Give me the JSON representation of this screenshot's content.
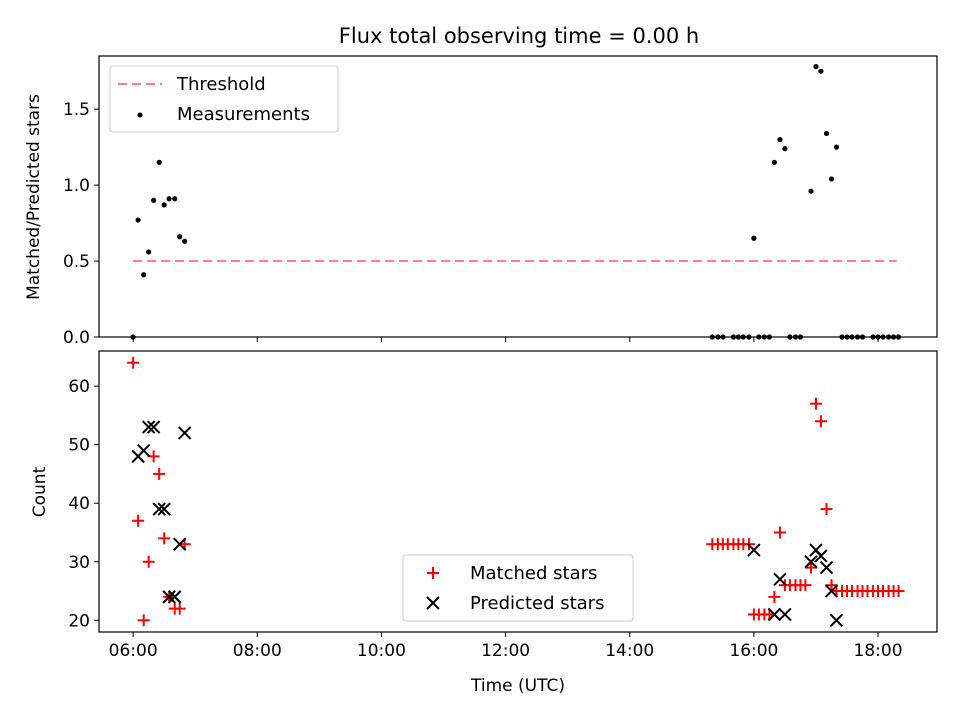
{
  "title": "Flux total observing time = 0.00 h",
  "colors": {
    "threshold": "#ff7f7f",
    "measurement": "#000000",
    "matched": "#ff0000",
    "predicted": "#000000"
  },
  "chart_data": [
    {
      "type": "scatter",
      "ylabel": "Matched/Predicted stars",
      "xlim": [
        5.45,
        18.95
      ],
      "ylim": [
        0,
        1.85
      ],
      "yticks": [
        0.0,
        0.5,
        1.0,
        1.5
      ],
      "ytick_labels": [
        "0.0",
        "0.5",
        "1.0",
        "1.5"
      ],
      "legend": {
        "placement": "upper-left",
        "entries": [
          "Threshold",
          "Measurements"
        ]
      },
      "threshold": {
        "name": "Threshold",
        "value": 0.5,
        "x": [
          6.0,
          18.3
        ]
      },
      "series": [
        {
          "name": "Measurements",
          "points": [
            [
              6.0,
              0.0
            ],
            [
              6.08,
              0.77
            ],
            [
              6.17,
              0.41
            ],
            [
              6.25,
              0.56
            ],
            [
              6.33,
              0.9
            ],
            [
              6.42,
              1.15
            ],
            [
              6.5,
              0.87
            ],
            [
              6.58,
              0.91
            ],
            [
              6.67,
              0.91
            ],
            [
              6.75,
              0.66
            ],
            [
              6.83,
              0.63
            ],
            [
              15.33,
              0.0
            ],
            [
              15.42,
              0.0
            ],
            [
              15.5,
              0.0
            ],
            [
              15.67,
              0.0
            ],
            [
              15.75,
              0.0
            ],
            [
              15.83,
              0.0
            ],
            [
              15.92,
              0.0
            ],
            [
              16.0,
              0.65
            ],
            [
              16.08,
              0.0
            ],
            [
              16.17,
              0.0
            ],
            [
              16.25,
              0.0
            ],
            [
              16.33,
              1.15
            ],
            [
              16.42,
              1.3
            ],
            [
              16.5,
              1.24
            ],
            [
              16.58,
              0.0
            ],
            [
              16.67,
              0.0
            ],
            [
              16.75,
              0.0
            ],
            [
              16.92,
              0.96
            ],
            [
              17.0,
              1.78
            ],
            [
              17.08,
              1.75
            ],
            [
              17.17,
              1.34
            ],
            [
              17.25,
              1.04
            ],
            [
              17.33,
              1.25
            ],
            [
              17.42,
              0.0
            ],
            [
              17.5,
              0.0
            ],
            [
              17.58,
              0.0
            ],
            [
              17.67,
              0.0
            ],
            [
              17.75,
              0.0
            ],
            [
              17.92,
              0.0
            ],
            [
              18.0,
              0.0
            ],
            [
              18.08,
              0.0
            ],
            [
              18.17,
              0.0
            ],
            [
              18.25,
              0.0
            ],
            [
              18.33,
              0.0
            ]
          ]
        }
      ]
    },
    {
      "type": "scatter",
      "ylabel": "Count",
      "xlabel": "Time (UTC)",
      "xlim": [
        5.45,
        18.95
      ],
      "ylim": [
        18,
        66
      ],
      "xticks": [
        6,
        8,
        10,
        12,
        14,
        16,
        18
      ],
      "xtick_labels": [
        "06:00",
        "08:00",
        "10:00",
        "12:00",
        "14:00",
        "16:00",
        "18:00"
      ],
      "yticks": [
        20,
        30,
        40,
        50,
        60
      ],
      "ytick_labels": [
        "20",
        "30",
        "40",
        "50",
        "60"
      ],
      "legend": {
        "placement": "lower-center",
        "entries": [
          "Matched stars",
          "Predicted stars"
        ]
      },
      "series": [
        {
          "name": "Matched stars",
          "marker": "+",
          "points": [
            [
              6.0,
              64
            ],
            [
              6.08,
              37
            ],
            [
              6.17,
              20
            ],
            [
              6.25,
              30
            ],
            [
              6.33,
              48
            ],
            [
              6.42,
              45
            ],
            [
              6.5,
              34
            ],
            [
              6.58,
              24
            ],
            [
              6.67,
              22
            ],
            [
              6.75,
              22
            ],
            [
              6.83,
              33
            ],
            [
              15.33,
              33
            ],
            [
              15.42,
              33
            ],
            [
              15.5,
              33
            ],
            [
              15.58,
              33
            ],
            [
              15.67,
              33
            ],
            [
              15.75,
              33
            ],
            [
              15.83,
              33
            ],
            [
              15.92,
              33
            ],
            [
              16.0,
              21
            ],
            [
              16.08,
              21
            ],
            [
              16.17,
              21
            ],
            [
              16.25,
              21
            ],
            [
              16.33,
              24
            ],
            [
              16.42,
              35
            ],
            [
              16.5,
              26
            ],
            [
              16.58,
              26
            ],
            [
              16.67,
              26
            ],
            [
              16.75,
              26
            ],
            [
              16.83,
              26
            ],
            [
              16.92,
              29
            ],
            [
              17.0,
              57
            ],
            [
              17.08,
              54
            ],
            [
              17.17,
              39
            ],
            [
              17.25,
              26
            ],
            [
              17.33,
              25
            ],
            [
              17.42,
              25
            ],
            [
              17.5,
              25
            ],
            [
              17.58,
              25
            ],
            [
              17.67,
              25
            ],
            [
              17.75,
              25
            ],
            [
              17.83,
              25
            ],
            [
              17.92,
              25
            ],
            [
              18.0,
              25
            ],
            [
              18.08,
              25
            ],
            [
              18.17,
              25
            ],
            [
              18.25,
              25
            ],
            [
              18.33,
              25
            ]
          ]
        },
        {
          "name": "Predicted stars",
          "marker": "x",
          "points": [
            [
              6.08,
              48
            ],
            [
              6.17,
              49
            ],
            [
              6.25,
              53
            ],
            [
              6.33,
              53
            ],
            [
              6.42,
              39
            ],
            [
              6.5,
              39
            ],
            [
              6.58,
              24
            ],
            [
              6.67,
              24
            ],
            [
              6.75,
              33
            ],
            [
              6.83,
              52
            ],
            [
              16.0,
              32
            ],
            [
              16.33,
              21
            ],
            [
              16.42,
              27
            ],
            [
              16.5,
              21
            ],
            [
              16.92,
              30
            ],
            [
              17.0,
              32
            ],
            [
              17.08,
              31
            ],
            [
              17.17,
              29
            ],
            [
              17.25,
              25
            ],
            [
              17.33,
              20
            ]
          ]
        }
      ]
    }
  ]
}
